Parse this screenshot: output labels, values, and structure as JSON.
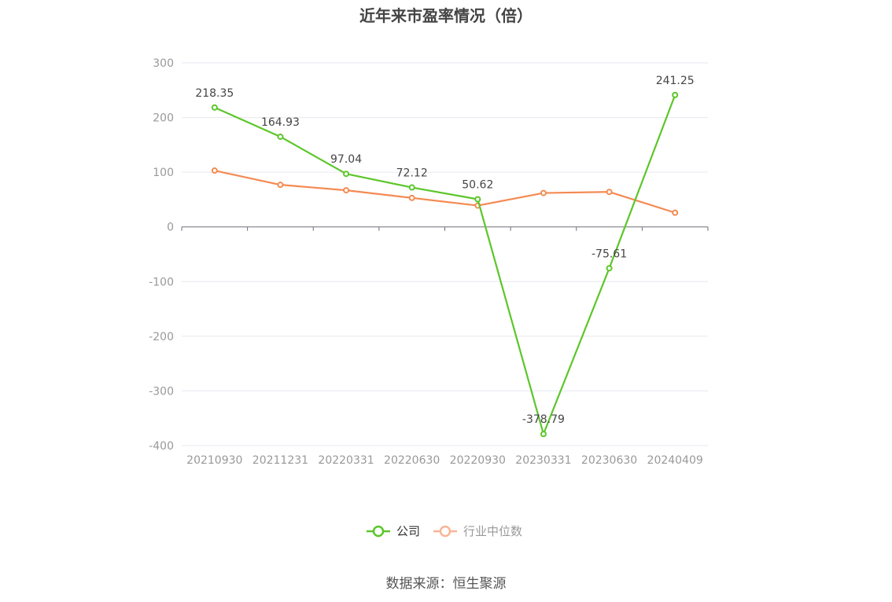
{
  "chart_data": {
    "type": "line",
    "title": "近年来市盈率情况（倍）",
    "source": "数据来源：恒生聚源",
    "categories": [
      "20210930",
      "20211231",
      "20220331",
      "20220630",
      "20220930",
      "20230331",
      "20230630",
      "20240409"
    ],
    "ylim": [
      -400,
      300
    ],
    "yticks": [
      300,
      200,
      100,
      0,
      -100,
      -200,
      -300,
      -400
    ],
    "grid": true,
    "legend": "bottom-center",
    "series": [
      {
        "name": "公司",
        "color": "#5cc62a",
        "values": [
          218.35,
          164.93,
          97.04,
          72.12,
          50.62,
          -378.79,
          -75.61,
          241.25
        ],
        "labels": [
          "218.35",
          "164.93",
          "97.04",
          "72.12",
          "50.62",
          "-378.79",
          "-75.61",
          "241.25"
        ]
      },
      {
        "name": "行业中位数",
        "color": "#f48a52",
        "legend_color": "#f9b597",
        "values": [
          103,
          77,
          67,
          53,
          39,
          62,
          64,
          26
        ]
      }
    ]
  }
}
